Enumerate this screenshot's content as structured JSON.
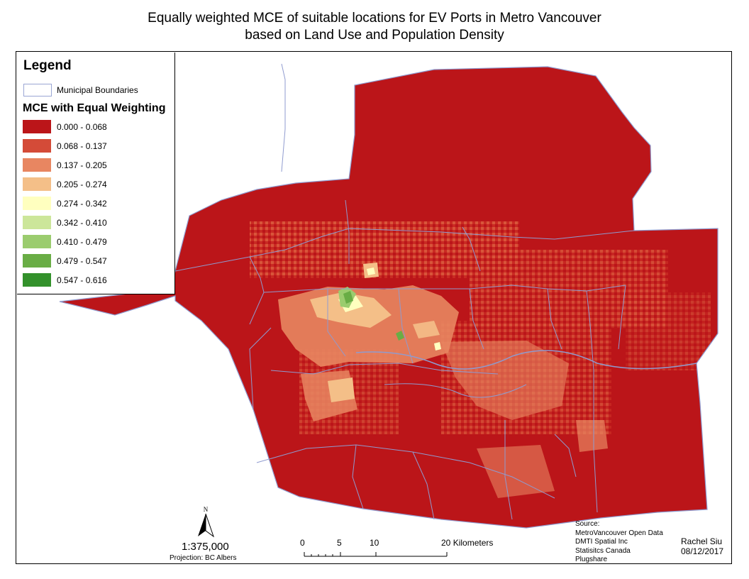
{
  "title_line1": "Equally weighted MCE of suitable locations for EV Ports in Metro Vancouver",
  "title_line2": "based on Land Use and Population Density",
  "legend": {
    "title": "Legend",
    "boundary_label": "Municipal Boundaries",
    "mce_title": "MCE with Equal Weighting",
    "classes": [
      {
        "label": "0.000 - 0.068",
        "color": "#bb1519"
      },
      {
        "label": "0.068 - 0.137",
        "color": "#d44b38"
      },
      {
        "label": "0.137 - 0.205",
        "color": "#e88661"
      },
      {
        "label": "0.205 - 0.274",
        "color": "#f4bf88"
      },
      {
        "label": "0.274 - 0.342",
        "color": "#ffffbf"
      },
      {
        "label": "0.342 - 0.410",
        "color": "#cce69a"
      },
      {
        "label": "0.410 - 0.479",
        "color": "#9bcc6e"
      },
      {
        "label": "0.479 - 0.547",
        "color": "#69ad45"
      },
      {
        "label": "0.547 - 0.616",
        "color": "#33912b"
      }
    ]
  },
  "boundary_color": "#8f9bcf",
  "north_label": "N",
  "scale_ratio": "1:375,000",
  "projection": "Projection: BC Albers",
  "scalebar": {
    "ticks": [
      "0",
      "5",
      "10",
      "20"
    ],
    "unit": "Kilometers"
  },
  "source_lines": [
    "Source:",
    "MetroVancouver Open Data",
    "DMTI Spatial Inc",
    "Statisitcs Canada",
    "Plugshare"
  ],
  "author": "Rachel Siu",
  "date": "08/12/2017"
}
